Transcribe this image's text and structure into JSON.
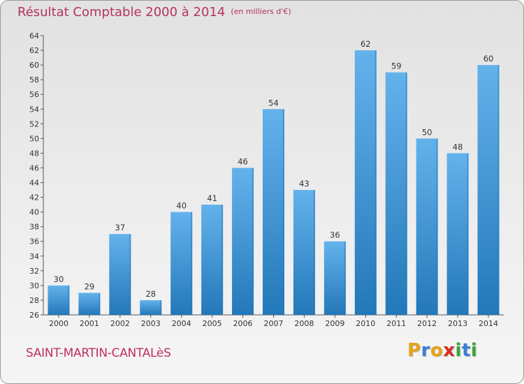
{
  "title": "Résultat Comptable 2000 à 2014",
  "subtitle": "(en milliers d'€)",
  "commune": "SAINT-MARTIN-CANTALèS",
  "logo": {
    "letters": [
      "P",
      "r",
      "o",
      "x",
      "i",
      "t",
      "i"
    ],
    "colors": [
      "#e8a21a",
      "#3b7fd4",
      "#e8a21a",
      "#d62f1e",
      "#3aa639",
      "#3b7fd4",
      "#3aa639"
    ]
  },
  "colors": {
    "bar": "#3d95da",
    "bar_light": "#64b2ec",
    "bar_dark": "#2378b9",
    "title": "#b5335a"
  },
  "chart_data": {
    "type": "bar",
    "categories": [
      "2000",
      "2001",
      "2002",
      "2003",
      "2004",
      "2005",
      "2006",
      "2007",
      "2008",
      "2009",
      "2010",
      "2011",
      "2012",
      "2013",
      "2014"
    ],
    "values": [
      30,
      29,
      37,
      28,
      40,
      41,
      46,
      54,
      43,
      36,
      62,
      59,
      50,
      48,
      60
    ],
    "ylim": [
      26,
      64
    ],
    "yticks": [
      26,
      28,
      30,
      32,
      34,
      36,
      38,
      40,
      42,
      44,
      46,
      48,
      50,
      52,
      54,
      56,
      58,
      60,
      62,
      64
    ],
    "grid": false,
    "legend": "none"
  }
}
